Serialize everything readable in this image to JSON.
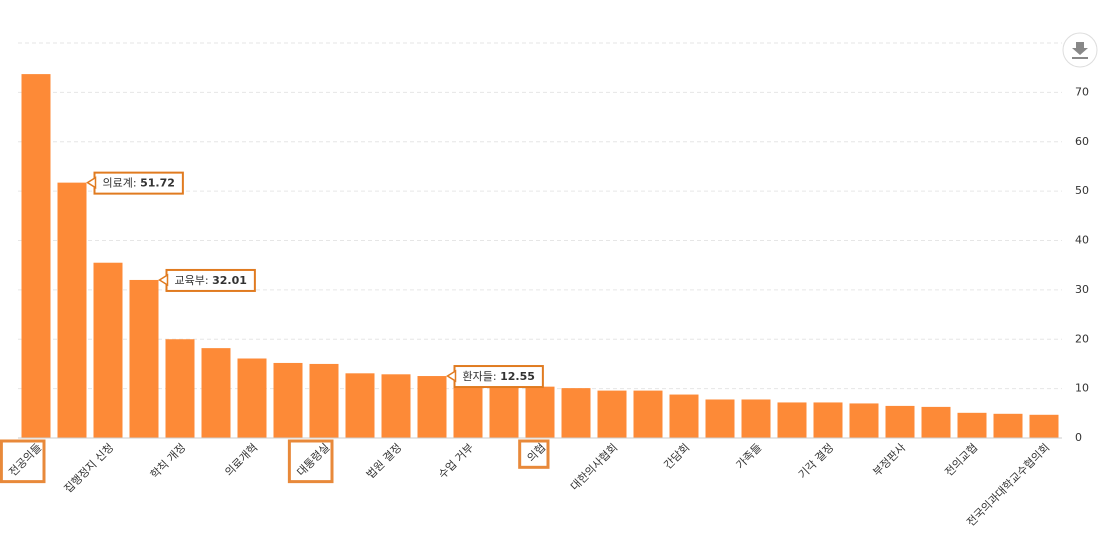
{
  "chart_data": {
    "type": "bar",
    "categories": [
      "전공의들",
      "의료계",
      "집행정지 신청",
      "교육부",
      "학칙 개정",
      null,
      "의료개혁",
      null,
      "대통령실",
      null,
      "법원 결정",
      "환자들",
      "수업 거부",
      null,
      "의협",
      null,
      "대한의사협회",
      null,
      "간담회",
      null,
      "가족들",
      null,
      "기각 결정",
      null,
      "부정판사",
      null,
      "전의교협",
      null,
      "전국의과대학교수협의회"
    ],
    "values": [
      73.7,
      51.72,
      35.5,
      32.01,
      20.0,
      18.2,
      16.1,
      15.2,
      15.0,
      13.1,
      12.9,
      12.55,
      11.0,
      10.5,
      10.4,
      10.1,
      9.6,
      9.6,
      8.8,
      7.8,
      7.8,
      7.2,
      7.2,
      7.0,
      6.5,
      6.3,
      5.1,
      4.9,
      4.7
    ],
    "color": "#fd8a37",
    "ylim": [
      0,
      80
    ],
    "yticks": [
      0,
      10,
      20,
      30,
      40,
      50,
      60,
      70
    ],
    "grid": true,
    "tooltips": [
      1,
      3,
      11
    ],
    "tooltip_separator": ": ",
    "highlighted_labels": [
      0,
      8,
      14
    ]
  }
}
